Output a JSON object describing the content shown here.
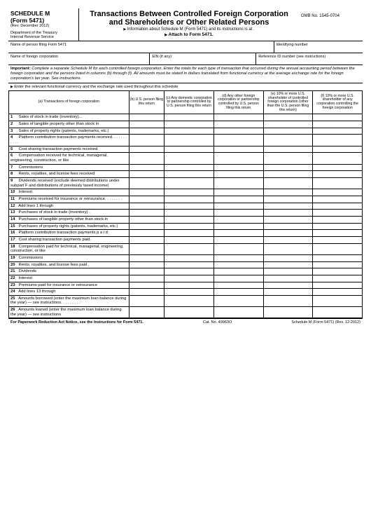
{
  "header": {
    "schedule": "SCHEDULE M",
    "form": "(Form 5471)",
    "rev": "(Rev. December 2012)",
    "dept1": "Department of the Treasury",
    "dept2": "Internal Revenue Service",
    "title": "Transactions Between Controlled Foreign Corporation and Shareholders or Other Related Persons",
    "info": "Information about Schedule M (Form 5471) and its instructions is at .",
    "attach": "Attach to Form 5471.",
    "omb": "OMB No. 1545-0704"
  },
  "name_row": {
    "left": "Name of person filing Form 5471",
    "right": "Identifying number"
  },
  "corp_row": {
    "left": "Name of foreign corporation",
    "mid": "EIN (if any)",
    "right": "Reference ID number (see instructions)"
  },
  "important": "Complete a separate Schedule M for each controlled foreign corporation. Enter the totals for each type of transaction that occurred during the annual accounting period between the foreign corporation and the persons listed in columns (b) through (f). All amounts must be stated in dollars translated from functional currency at the average exchange rate for the foreign corporation's tax year. See instructions.",
  "important_label": "Important:",
  "enter_note": "Enter the relevant functional currency and the exchange rate used throughout this schedule",
  "columns": {
    "a": "(a) Transactions of foreign corporation",
    "b": "(b) U.S. person filing this return",
    "c": "(c) Any domestic corporation or partnership controlled by U.S. person filing this return",
    "d": "(d) Any other foreign corporation or partnership controlled by U.S. person filing this return",
    "e": "(e) 10% or more U.S. shareholder of controlled foreign corporation (other than the U.S. person filing this return)",
    "f": "(f) 10% or more U.S. shareholder of any corporation controlling the foreign corporation"
  },
  "rows": [
    {
      "n": "1",
      "t": "Sales of stock in trade (inventory)..."
    },
    {
      "n": "2",
      "t": "Sales of tangible property other than stock in"
    },
    {
      "n": "3",
      "t": "Sales of property rights (patents, trademarks, etc.)"
    },
    {
      "n": "4",
      "t": "Platform contribution transaction payments received.   .   .   .   .   .   .   .   .   .   ."
    },
    {
      "n": "5",
      "t": "Cost sharing transaction payments received"
    },
    {
      "n": "6",
      "t": "Compensation received for technical, managerial, engineering, construction, or like"
    },
    {
      "n": "7",
      "t": "Commissions"
    },
    {
      "n": "8",
      "t": "Rents, royalties, and license fees received"
    },
    {
      "n": "9",
      "t": "Dividends received (exclude deemed distributions under subpart F and distributions of previously taxed income)"
    },
    {
      "n": "10",
      "t": "Interest"
    },
    {
      "n": "11",
      "t": "Premiums received for insurance or reinsurance.   .   .   .   .   .   .   ."
    },
    {
      "n": "12",
      "t": "Add lines 1 through"
    },
    {
      "n": "13",
      "t": "Purchases of stock in trade (inventory) ."
    },
    {
      "n": "14",
      "t": "Purchases of tangible property other than stock in"
    },
    {
      "n": "15",
      "t": "Purchases of property rights (patents, trademarks, etc.)"
    },
    {
      "n": "16",
      "t": "Platform contribution transaction payments p   a   i   d"
    },
    {
      "n": "17",
      "t": "Cost sharing transaction payments paid."
    },
    {
      "n": "18",
      "t": "Compensation paid for technical, managerial, engineering, construction, or like"
    },
    {
      "n": "19",
      "t": "Commissions"
    },
    {
      "n": "20",
      "t": "Rents, royalties, and license fees paid ."
    },
    {
      "n": "21",
      "t": "Dividends"
    },
    {
      "n": "22",
      "t": "Interest"
    },
    {
      "n": "23",
      "t": "Premiums paid for insurance or reinsurance"
    },
    {
      "n": "24",
      "t": "Add lines 13 through"
    },
    {
      "n": "25",
      "t": "Amounts borrowed (enter the maximum loan balance during the year) — see instructions.   .   .   .   .   .   .   .   ."
    },
    {
      "n": "26",
      "t": "Amounts loaned (enter the maximum loan balance during the year) — see instructions"
    }
  ],
  "footer": {
    "notice": "For Paperwork Reduction Act Notice, see the Instructions for Form 5471.",
    "cat": "Cat. No. 49963O",
    "formref": "Schedule M (Form 5471) (Rev. 12-2012)"
  }
}
